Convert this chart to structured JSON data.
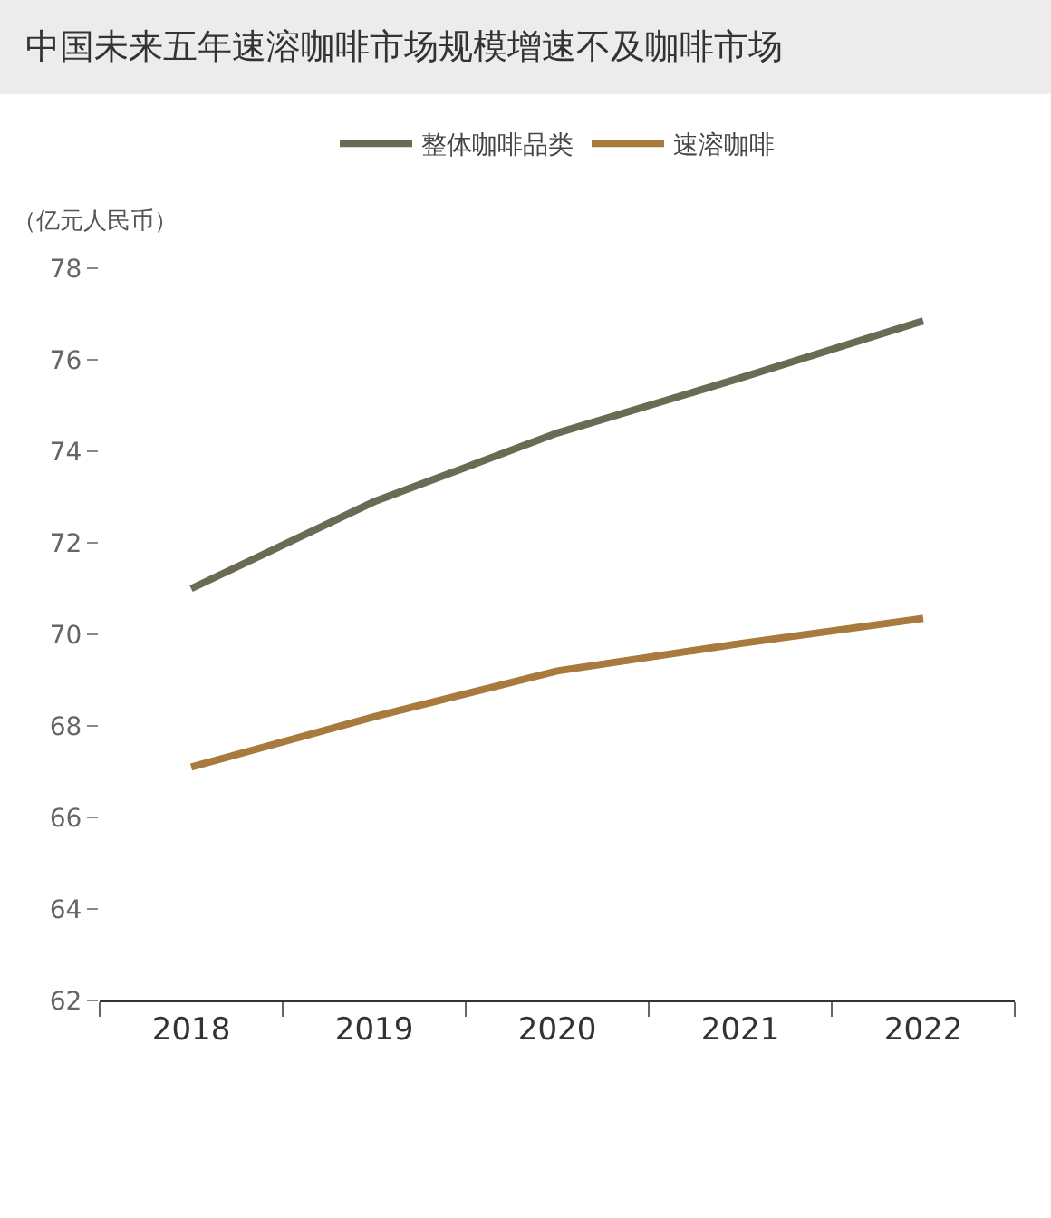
{
  "chart_data": {
    "type": "line",
    "title": "中国未来五年速溶咖啡市场规模增速不及咖啡市场",
    "ylabel": "（亿元人民币）",
    "categories": [
      "2018",
      "2019",
      "2020",
      "2021",
      "2022"
    ],
    "series": [
      {
        "name": "整体咖啡品类",
        "color": "#6b6b55",
        "values": [
          71.0,
          72.9,
          74.4,
          75.6,
          76.85
        ]
      },
      {
        "name": "速溶咖啡",
        "color": "#a87a3e",
        "values": [
          67.1,
          68.2,
          69.2,
          69.8,
          70.35
        ]
      }
    ],
    "ylim": [
      62,
      78
    ],
    "yticks": [
      62,
      64,
      66,
      68,
      70,
      72,
      74,
      76,
      78
    ],
    "grid": false,
    "legend": "top",
    "marker": "none",
    "line_style": "solid"
  }
}
